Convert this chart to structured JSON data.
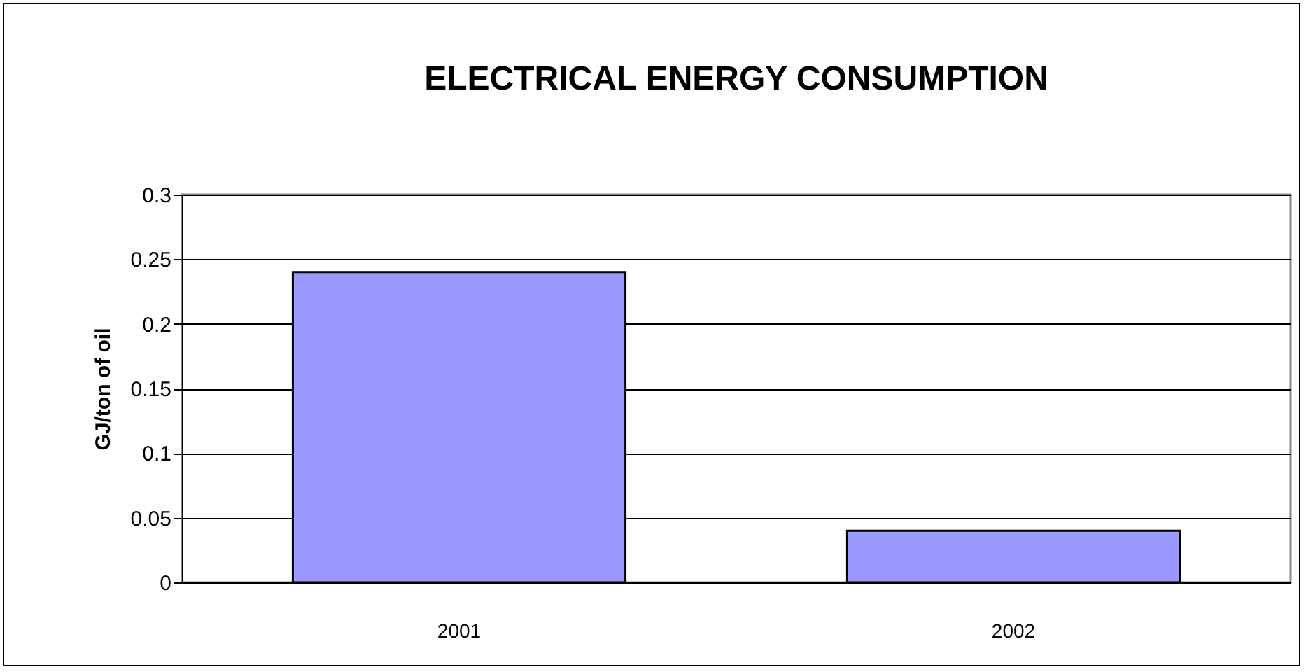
{
  "chart_data": {
    "type": "bar",
    "title": "ELECTRICAL ENERGY CONSUMPTION",
    "ylabel": "GJ/ton of oil",
    "categories": [
      "2001",
      "2002"
    ],
    "values": [
      0.24,
      0.04
    ],
    "color": "#9999ff",
    "ylim": [
      0,
      0.3
    ],
    "yticks": [
      0,
      0.05,
      0.1,
      0.15,
      0.2,
      0.25,
      0.3
    ],
    "grid": "y"
  }
}
